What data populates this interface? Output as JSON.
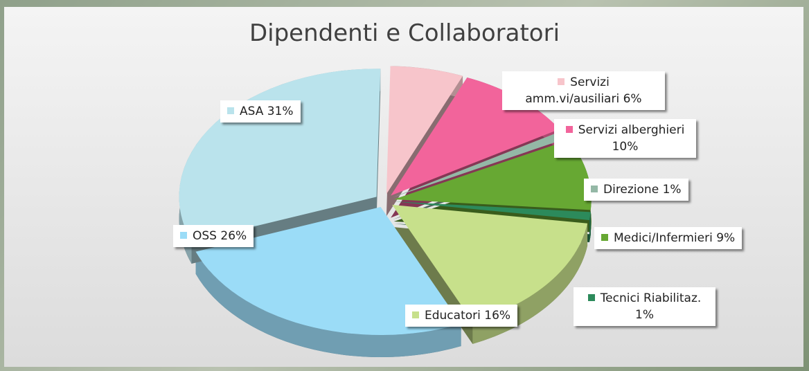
{
  "chart_data": {
    "type": "pie",
    "title": "Dipendenti e Collaboratori",
    "categories": [
      "Servizi amm.vi/ausiliari",
      "Servizi alberghieri",
      "Direzione",
      "Medici/Infermieri",
      "Tecnici Riabilitaz.",
      "Educatori",
      "OSS",
      "ASA"
    ],
    "values": [
      6,
      10,
      1,
      9,
      1,
      16,
      26,
      31
    ],
    "value_labels": [
      "6%",
      "10%",
      "1%",
      "9%",
      "1%",
      "16%",
      "26%",
      "31%"
    ],
    "colors": [
      "#f7c5cb",
      "#f2649b",
      "#94b8a6",
      "#67a833",
      "#2c8a5b",
      "#c7e08b",
      "#9bdcf7",
      "#bae3ec"
    ]
  }
}
